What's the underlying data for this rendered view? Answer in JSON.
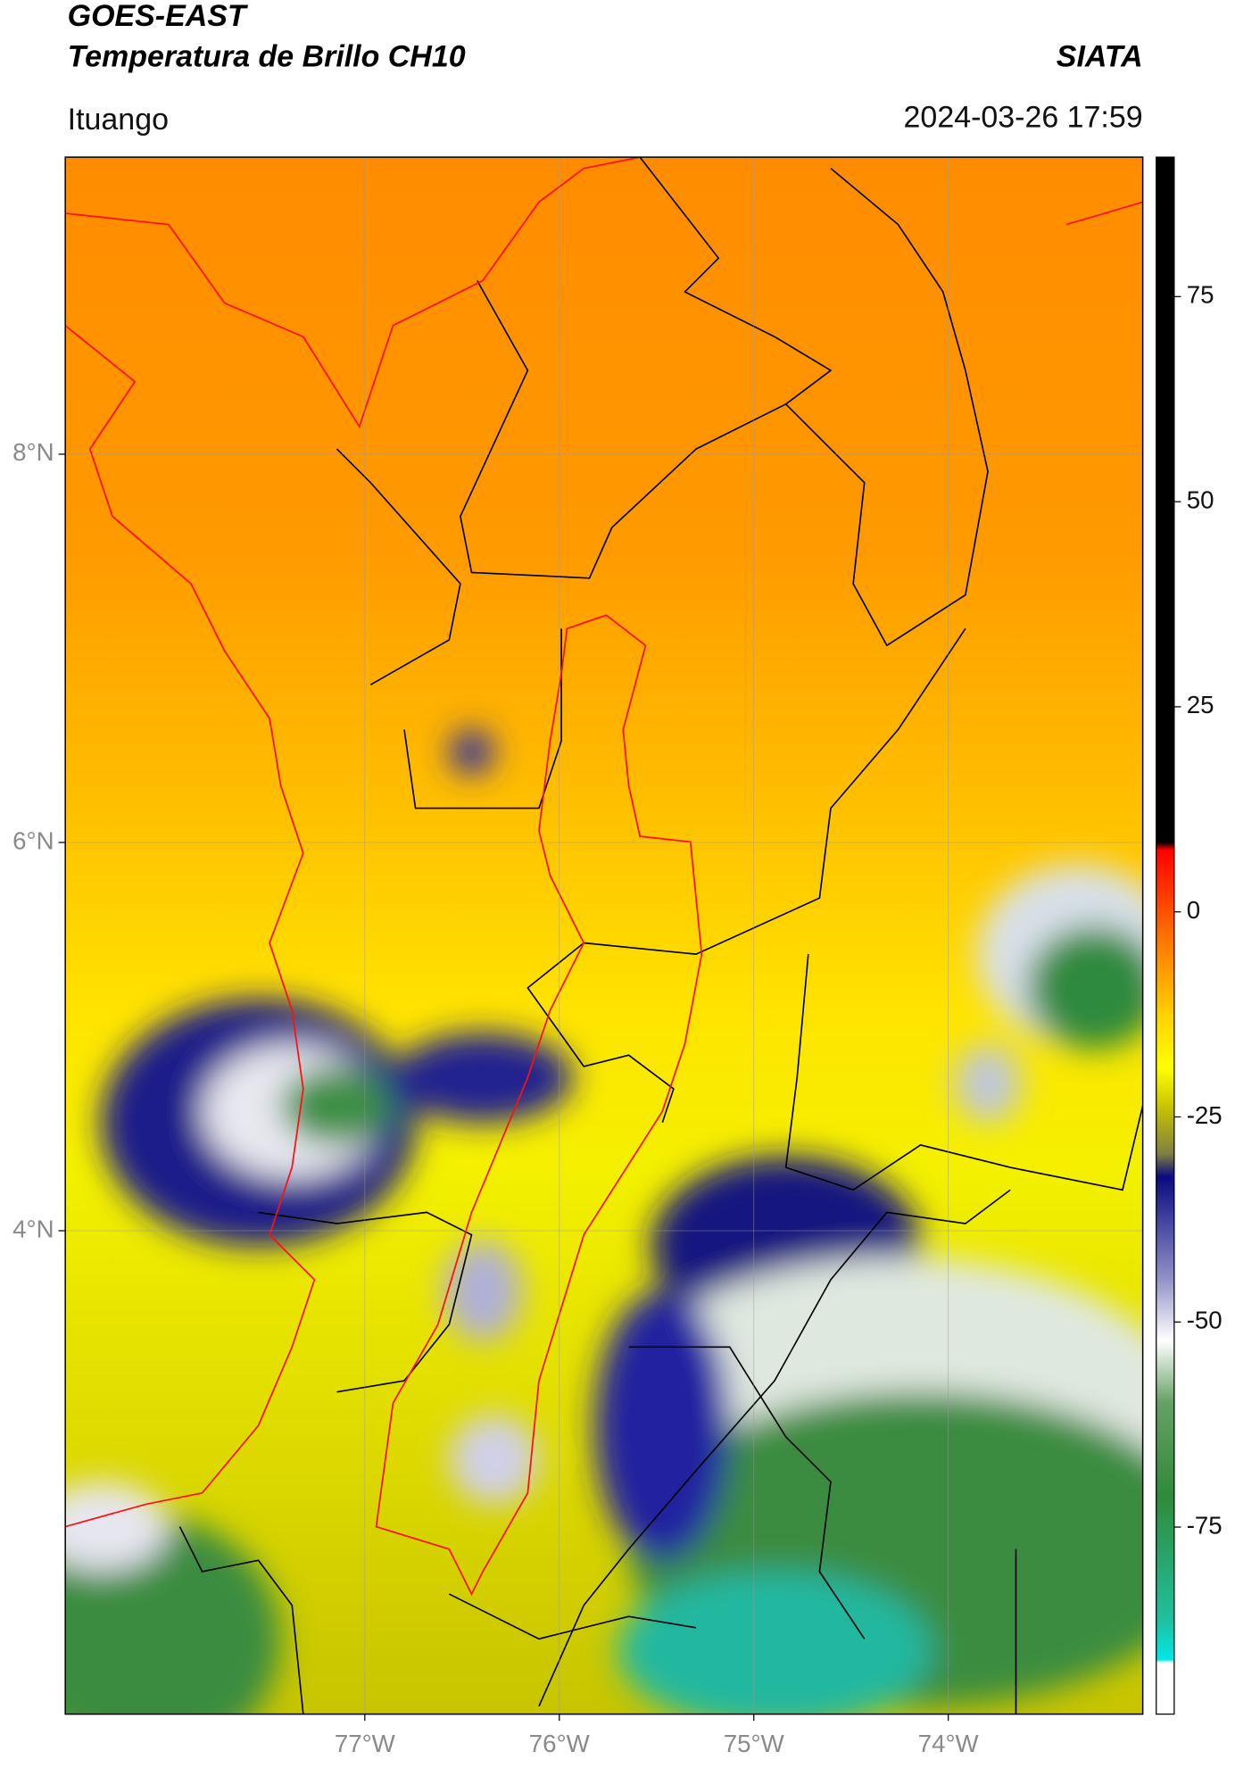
{
  "header": {
    "title": "GOES-EAST",
    "subtitle": "Temperatura de Brillo CH10",
    "brand": "SIATA",
    "region": "Ituango",
    "timestamp": "2024-03-26 17:59"
  },
  "map": {
    "lonlim": [
      -78.54,
      -73.0
    ],
    "latlim": [
      1.51,
      9.53
    ],
    "lon_ticks": [
      {
        "value": -77,
        "label": "77°W"
      },
      {
        "value": -76,
        "label": "76°W"
      },
      {
        "value": -75,
        "label": "75°W"
      },
      {
        "value": -74,
        "label": "74°W"
      }
    ],
    "lat_ticks": [
      {
        "value": 8,
        "label": "8°N"
      },
      {
        "value": 6,
        "label": "6°N"
      },
      {
        "value": 4,
        "label": "4°N"
      }
    ]
  },
  "colorbar": {
    "lim": [
      -97.8,
      92
    ],
    "ticks": [
      75,
      50,
      25,
      0,
      -25,
      -50,
      -75
    ]
  }
}
